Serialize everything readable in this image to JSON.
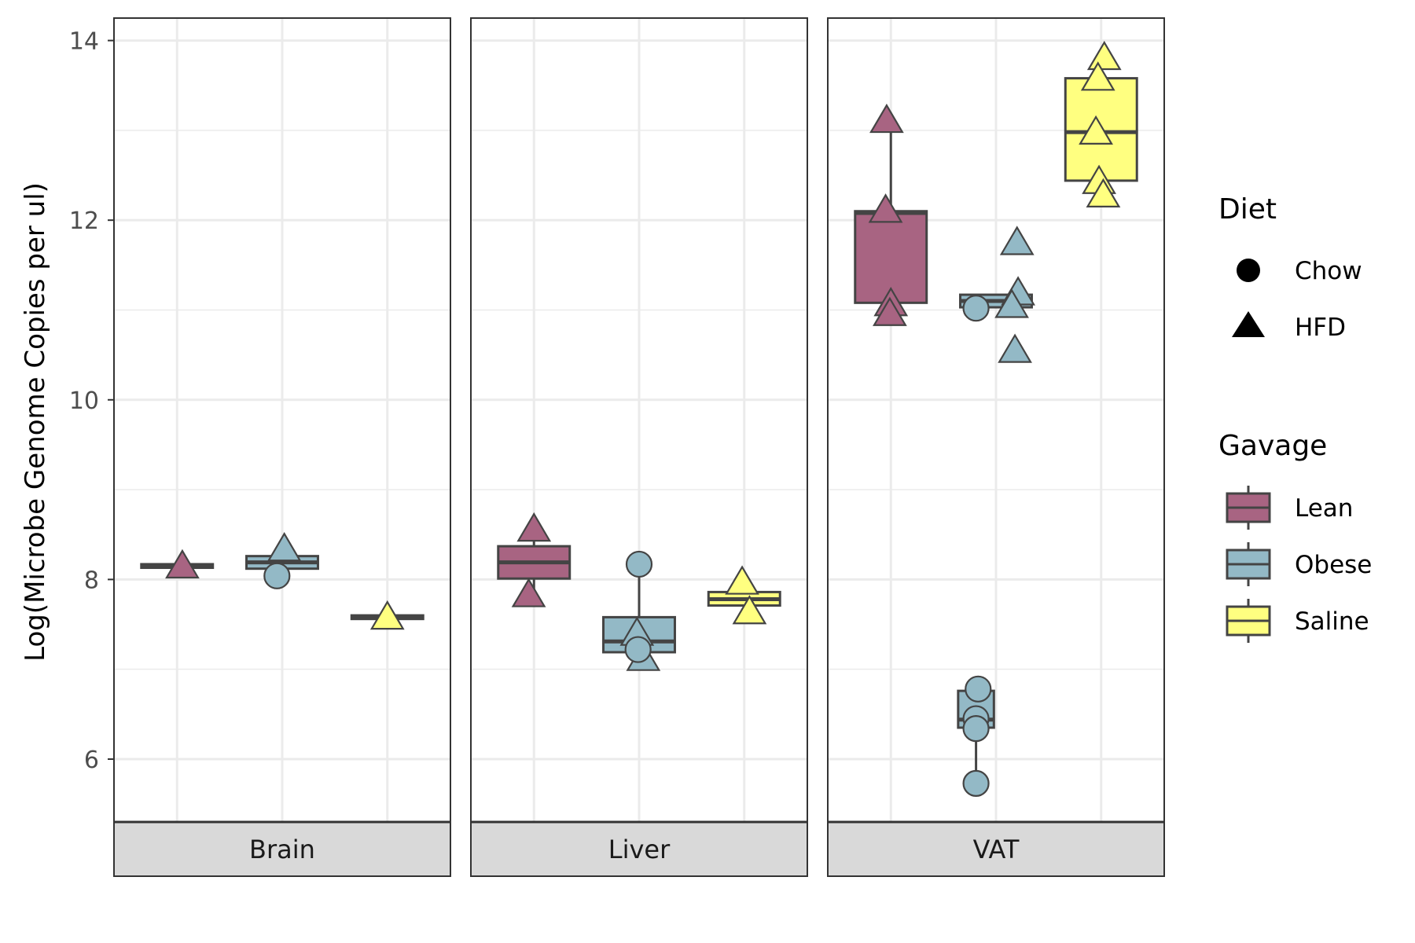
{
  "chart_data": {
    "type": "box",
    "ylabel": "Log(Microbe Genome Copies per ul)",
    "ylim": [
      5.3,
      14.25
    ],
    "yticks": [
      6,
      8,
      10,
      12,
      14
    ],
    "grid": true,
    "legend_position": "right",
    "groups": [
      "Lean",
      "Obese",
      "Saline"
    ],
    "panels": [
      {
        "name": "Brain",
        "boxes": [
          {
            "group": "Lean",
            "q1": 8.13,
            "median": 8.15,
            "q3": 8.17,
            "whisker_low": 8.13,
            "whisker_high": 8.17
          },
          {
            "group": "Obese",
            "q1": 8.12,
            "median": 8.19,
            "q3": 8.26,
            "whisker_low": 8.12,
            "whisker_high": 8.26
          },
          {
            "group": "Saline",
            "q1": 7.56,
            "median": 7.58,
            "q3": 7.6,
            "whisker_low": 7.56,
            "whisker_high": 7.6
          }
        ],
        "points": [
          {
            "group": "Lean",
            "diet": "HFD",
            "y": 8.17,
            "jitter": 0.05
          },
          {
            "group": "Obese",
            "diet": "HFD",
            "y": 8.36,
            "jitter": 0.02
          },
          {
            "group": "Obese",
            "diet": "Chow",
            "y": 8.04,
            "jitter": -0.05
          },
          {
            "group": "Saline",
            "diet": "HFD",
            "y": 7.6,
            "jitter": 0.0
          }
        ]
      },
      {
        "name": "Liver",
        "boxes": [
          {
            "group": "Lean",
            "q1": 8.01,
            "median": 8.19,
            "q3": 8.37,
            "whisker_low": 7.85,
            "whisker_high": 8.58
          },
          {
            "group": "Obese",
            "q1": 7.19,
            "median": 7.31,
            "q3": 7.58,
            "whisker_low": 7.14,
            "whisker_high": 8.17
          },
          {
            "group": "Saline",
            "q1": 7.71,
            "median": 7.78,
            "q3": 7.86,
            "whisker_low": 7.66,
            "whisker_high": 7.99
          }
        ],
        "points": [
          {
            "group": "Lean",
            "diet": "HFD",
            "y": 8.58,
            "jitter": 0.0
          },
          {
            "group": "Lean",
            "diet": "HFD",
            "y": 7.85,
            "jitter": -0.05
          },
          {
            "group": "Obese",
            "diet": "Chow",
            "y": 8.17,
            "jitter": 0.0
          },
          {
            "group": "Obese",
            "diet": "HFD",
            "y": 7.42,
            "jitter": -0.02
          },
          {
            "group": "Obese",
            "diet": "HFD",
            "y": 7.14,
            "jitter": 0.04
          },
          {
            "group": "Obese",
            "diet": "Chow",
            "y": 7.22,
            "jitter": -0.01
          },
          {
            "group": "Saline",
            "diet": "HFD",
            "y": 7.99,
            "jitter": -0.02
          },
          {
            "group": "Saline",
            "diet": "HFD",
            "y": 7.66,
            "jitter": 0.05
          }
        ]
      },
      {
        "name": "VAT",
        "boxes": [
          {
            "group": "Lean",
            "q1": 11.08,
            "median": 12.08,
            "q3": 12.1,
            "whisker_low": 10.98,
            "whisker_high": 13.13
          },
          {
            "group": "Obese",
            "q1": 11.03,
            "median": 11.1,
            "q3": 11.17,
            "whisker_low": 11.03,
            "whisker_high": 11.17
          },
          {
            "group": "Saline",
            "q1": 12.44,
            "median": 12.98,
            "q3": 13.58,
            "whisker_low": 12.3,
            "whisker_high": 13.83
          }
        ],
        "outlier_boxes": [
          {
            "group": "Obese",
            "q1": 6.35,
            "median": 6.44,
            "q3": 6.76,
            "whisker_low": 5.73,
            "whisker_high": 6.79,
            "offset": -0.19
          }
        ],
        "points": [
          {
            "group": "Lean",
            "diet": "HFD",
            "y": 13.13,
            "jitter": -0.04
          },
          {
            "group": "Lean",
            "diet": "HFD",
            "y": 12.13,
            "jitter": -0.05
          },
          {
            "group": "Lean",
            "diet": "HFD",
            "y": 11.09,
            "jitter": 0.0
          },
          {
            "group": "Lean",
            "diet": "HFD",
            "y": 10.98,
            "jitter": -0.01
          },
          {
            "group": "Obese",
            "diet": "Chow",
            "y": 11.02,
            "jitter": -0.19
          },
          {
            "group": "Obese",
            "diet": "HFD",
            "y": 11.77,
            "jitter": 0.2
          },
          {
            "group": "Obese",
            "diet": "HFD",
            "y": 11.21,
            "jitter": 0.21
          },
          {
            "group": "Obese",
            "diet": "HFD",
            "y": 11.07,
            "jitter": 0.15
          },
          {
            "group": "Obese",
            "diet": "HFD",
            "y": 10.57,
            "jitter": 0.18
          },
          {
            "group": "Obese",
            "diet": "Chow",
            "y": 6.78,
            "jitter": -0.17
          },
          {
            "group": "Obese",
            "diet": "Chow",
            "y": 6.45,
            "jitter": -0.19
          },
          {
            "group": "Obese",
            "diet": "Chow",
            "y": 6.34,
            "jitter": -0.19
          },
          {
            "group": "Obese",
            "diet": "Chow",
            "y": 5.73,
            "jitter": -0.19
          },
          {
            "group": "Saline",
            "diet": "HFD",
            "y": 13.83,
            "jitter": 0.03
          },
          {
            "group": "Saline",
            "diet": "HFD",
            "y": 13.6,
            "jitter": -0.03
          },
          {
            "group": "Saline",
            "diet": "HFD",
            "y": 13.0,
            "jitter": -0.05
          },
          {
            "group": "Saline",
            "diet": "HFD",
            "y": 12.45,
            "jitter": -0.02
          },
          {
            "group": "Saline",
            "diet": "HFD",
            "y": 12.3,
            "jitter": 0.02
          }
        ]
      }
    ],
    "legend": {
      "diet": {
        "title": "Diet",
        "items": [
          {
            "label": "Chow",
            "shape": "circle"
          },
          {
            "label": "HFD",
            "shape": "triangle"
          }
        ]
      },
      "gavage": {
        "title": "Gavage",
        "items": [
          {
            "label": "Lean"
          },
          {
            "label": "Obese"
          },
          {
            "label": "Saline"
          }
        ]
      }
    }
  },
  "colors": {
    "Lean": "#a86482",
    "Obese": "#93b9c6",
    "Saline": "#ffff80",
    "outline": "#444444",
    "grid": "#ebebeb",
    "strip": "#d9d9d9",
    "axis_text": "#4d4d4d"
  }
}
